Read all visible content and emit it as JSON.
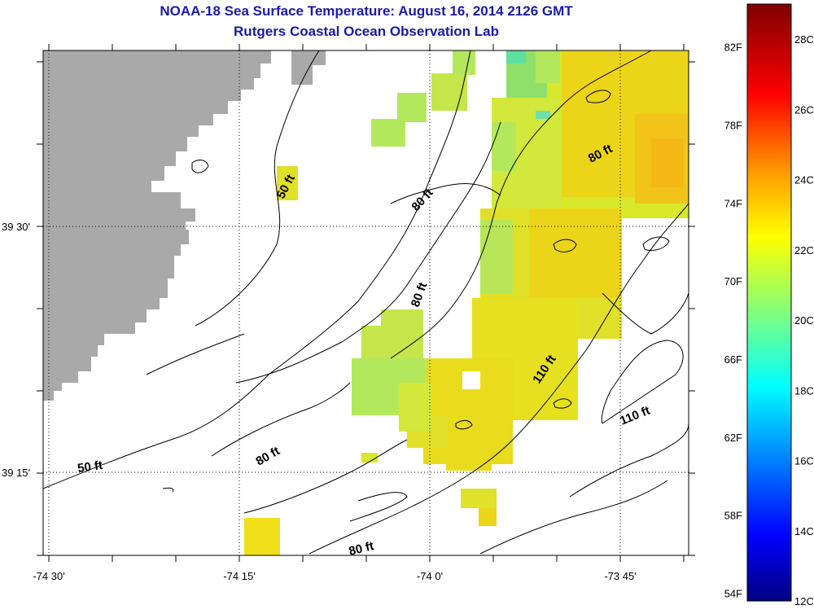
{
  "title": "NOAA-18 Sea Surface Temperature:  August 16, 2014 2126 GMT",
  "subtitle": "Rutgers Coastal Ocean Observation Lab",
  "lon_ticks": [
    {
      "label": "-74 30'",
      "lon": -74.5
    },
    {
      "label": "-74 15'",
      "lon": -74.25
    },
    {
      "label": "-74 0'",
      "lon": -74.0
    },
    {
      "label": "-73 45'",
      "lon": -73.75
    }
  ],
  "lat_ticks": [
    {
      "label": "39 30'",
      "lat": 39.5
    },
    {
      "label": "39 15'",
      "lat": 39.25
    }
  ],
  "depth_labels": [
    "50 ft",
    "80 ft",
    "80 ft",
    "80 ft",
    "80 ft",
    "110 ft",
    "80 ft",
    "110 ft",
    "50 ft"
  ],
  "colorbar": {
    "f_labels": [
      "82F",
      "78F",
      "74F",
      "70F",
      "66F",
      "62F",
      "58F",
      "54F"
    ],
    "c_labels": [
      "28C",
      "26C",
      "24C",
      "22C",
      "20C",
      "18C",
      "16C",
      "14C",
      "12C"
    ],
    "min_c": 12,
    "max_c": 29,
    "colors": [
      "#00007f",
      "#0000ff",
      "#007fff",
      "#00ffff",
      "#7fff7f",
      "#ffff00",
      "#ff7f00",
      "#ff0000",
      "#7f0000"
    ]
  },
  "land_color": "#a9a9a9"
}
